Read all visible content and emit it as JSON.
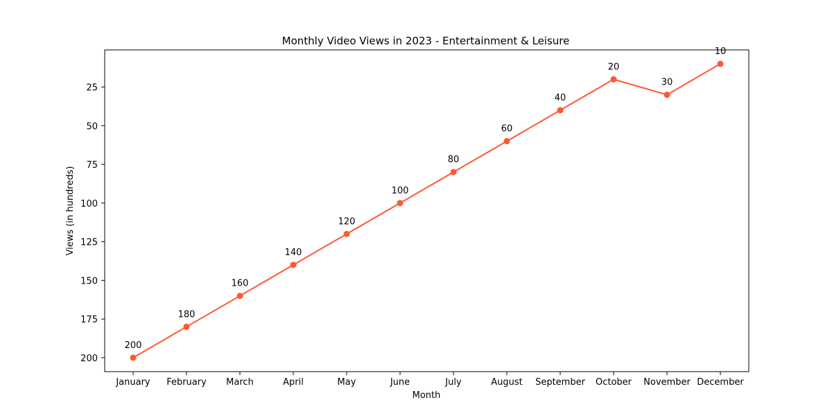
{
  "chart_data": {
    "type": "line",
    "title": "Monthly Video Views in 2023 - Entertainment & Leisure",
    "xlabel": "Month",
    "ylabel": "Views (in hundreds)",
    "categories": [
      "January",
      "February",
      "March",
      "April",
      "May",
      "June",
      "July",
      "August",
      "September",
      "October",
      "November",
      "December"
    ],
    "series": [
      {
        "values": [
          200,
          180,
          160,
          140,
          120,
          100,
          80,
          60,
          40,
          20,
          30,
          10
        ]
      }
    ],
    "ylim": [
      1,
      209
    ],
    "y_inverted": true,
    "yticks": [
      25,
      50,
      75,
      100,
      125,
      150,
      175,
      200
    ],
    "grid": false,
    "legend": "none",
    "line_color": "#ff5733",
    "marker": "circle"
  }
}
